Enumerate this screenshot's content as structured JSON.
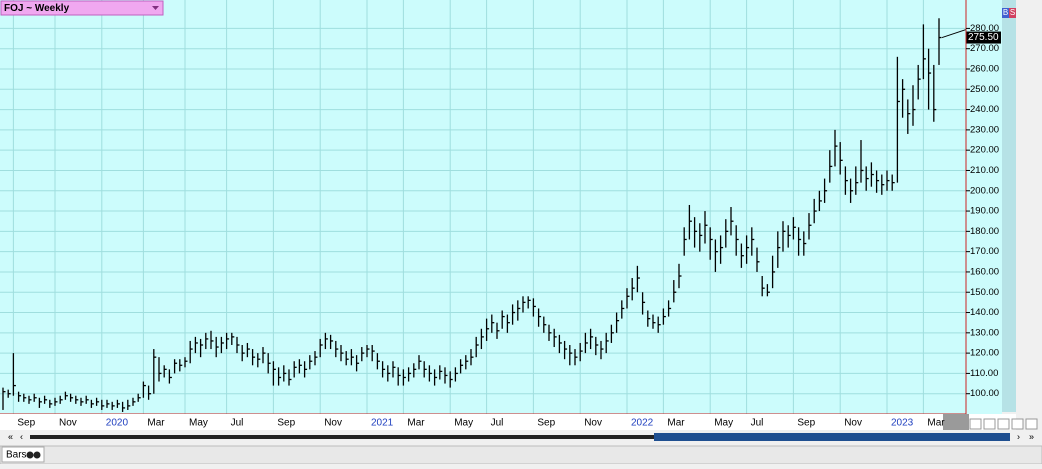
{
  "chart_data": {
    "type": "ohlc",
    "title": "FOJ ~ Weekly",
    "color": "#000000",
    "grid": true,
    "last_price_label": "275.50",
    "ylim": [
      90,
      294
    ],
    "yticks": [
      {
        "value": 100,
        "label": "100.00"
      },
      {
        "value": 110,
        "label": "110.00"
      },
      {
        "value": 120,
        "label": "120.00"
      },
      {
        "value": 130,
        "label": "130.00"
      },
      {
        "value": 140,
        "label": "140.00"
      },
      {
        "value": 150,
        "label": "150.00"
      },
      {
        "value": 160,
        "label": "160.00"
      },
      {
        "value": 170,
        "label": "170.00"
      },
      {
        "value": 180,
        "label": "180.00"
      },
      {
        "value": 190,
        "label": "190.00"
      },
      {
        "value": 200,
        "label": "200.00"
      },
      {
        "value": 210,
        "label": "210.00"
      },
      {
        "value": 220,
        "label": "220.00"
      },
      {
        "value": 230,
        "label": "230.00"
      },
      {
        "value": 240,
        "label": "240.00"
      },
      {
        "value": 250,
        "label": "250.00"
      },
      {
        "value": 260,
        "label": "260.00"
      },
      {
        "value": 270,
        "label": "270.00"
      },
      {
        "value": 280,
        "label": "280.00"
      }
    ],
    "categories": [
      null,
      null,
      "Sep",
      null,
      null,
      null,
      null,
      null,
      null,
      null,
      "Nov",
      null,
      null,
      null,
      null,
      null,
      null,
      null,
      null,
      "2020",
      null,
      null,
      null,
      null,
      null,
      null,
      null,
      "Mar",
      null,
      null,
      null,
      null,
      null,
      null,
      null,
      "May",
      null,
      null,
      null,
      null,
      null,
      null,
      null,
      "Jul",
      null,
      null,
      null,
      null,
      null,
      null,
      null,
      null,
      "Sep",
      null,
      null,
      null,
      null,
      null,
      null,
      null,
      null,
      "Nov",
      null,
      null,
      null,
      null,
      null,
      null,
      null,
      null,
      "2021",
      null,
      null,
      null,
      null,
      null,
      null,
      "Mar",
      null,
      null,
      null,
      null,
      null,
      null,
      null,
      null,
      "May",
      null,
      null,
      null,
      null,
      null,
      null,
      "Jul",
      null,
      null,
      null,
      null,
      null,
      null,
      null,
      null,
      "Sep",
      null,
      null,
      null,
      null,
      null,
      null,
      null,
      null,
      "Nov",
      null,
      null,
      null,
      null,
      null,
      null,
      null,
      null,
      "2022",
      null,
      null,
      null,
      null,
      null,
      null,
      "Mar",
      null,
      null,
      null,
      null,
      null,
      null,
      null,
      null,
      "May",
      null,
      null,
      null,
      null,
      null,
      null,
      "Jul",
      null,
      null,
      null,
      null,
      null,
      null,
      null,
      null,
      "Sep",
      null,
      null,
      null,
      null,
      null,
      null,
      null,
      null,
      "Nov",
      null,
      null,
      null,
      null,
      null,
      null,
      null,
      null,
      "2023",
      null,
      null,
      null,
      null,
      null,
      null,
      "Mar",
      null,
      null,
      null
    ],
    "high": [
      103,
      102,
      120,
      101,
      100,
      99,
      100,
      98,
      99,
      97,
      98,
      99,
      101,
      100,
      99,
      98,
      99,
      97,
      98,
      97,
      97,
      96,
      97,
      96,
      97,
      98,
      100,
      106,
      104,
      122,
      118,
      114,
      112,
      117,
      117,
      118,
      126,
      128,
      127,
      130,
      131,
      128,
      128,
      130,
      130,
      128,
      124,
      125,
      122,
      120,
      123,
      120,
      116,
      113,
      114,
      112,
      116,
      117,
      116,
      119,
      121,
      127,
      130,
      129,
      126,
      124,
      121,
      122,
      119,
      123,
      124,
      124,
      120,
      116,
      114,
      116,
      113,
      112,
      113,
      115,
      119,
      116,
      114,
      112,
      114,
      113,
      111,
      113,
      117,
      119,
      122,
      128,
      132,
      137,
      139,
      135,
      141,
      139,
      144,
      146,
      148,
      148,
      147,
      142,
      138,
      134,
      132,
      129,
      126,
      124,
      122,
      125,
      130,
      132,
      128,
      126,
      130,
      134,
      140,
      146,
      152,
      157,
      163,
      150,
      141,
      139,
      138,
      142,
      146,
      156,
      164,
      182,
      193,
      187,
      184,
      190,
      182,
      176,
      178,
      186,
      192,
      183,
      174,
      178,
      182,
      172,
      158,
      154,
      168,
      180,
      185,
      183,
      187,
      182,
      180,
      189,
      196,
      200,
      206,
      220,
      230,
      224,
      212,
      206,
      212,
      225,
      212,
      214,
      210,
      208,
      210,
      208,
      266,
      255,
      245,
      252,
      262,
      282,
      270,
      262,
      285
    ],
    "low": [
      92,
      98,
      99,
      96,
      96,
      95,
      96,
      93,
      95,
      93,
      94,
      95,
      97,
      96,
      95,
      94,
      95,
      93,
      94,
      92,
      93,
      92,
      93,
      91,
      92,
      94,
      96,
      98,
      97,
      100,
      106,
      108,
      105,
      110,
      111,
      113,
      115,
      120,
      118,
      122,
      122,
      118,
      120,
      122,
      124,
      120,
      116,
      118,
      114,
      113,
      115,
      110,
      104,
      104,
      106,
      104,
      108,
      110,
      108,
      112,
      114,
      118,
      122,
      122,
      118,
      116,
      114,
      114,
      111,
      116,
      118,
      116,
      112,
      108,
      106,
      108,
      104,
      104,
      106,
      108,
      112,
      108,
      106,
      104,
      107,
      105,
      103,
      106,
      110,
      112,
      114,
      118,
      122,
      126,
      130,
      127,
      132,
      130,
      134,
      136,
      140,
      142,
      138,
      133,
      130,
      126,
      123,
      120,
      117,
      114,
      114,
      116,
      120,
      122,
      119,
      117,
      120,
      125,
      130,
      137,
      142,
      146,
      150,
      139,
      133,
      132,
      130,
      134,
      138,
      145,
      152,
      168,
      176,
      172,
      170,
      174,
      166,
      160,
      164,
      172,
      178,
      168,
      162,
      164,
      168,
      160,
      148,
      148,
      152,
      162,
      170,
      172,
      176,
      168,
      168,
      176,
      184,
      190,
      194,
      204,
      212,
      208,
      198,
      194,
      198,
      204,
      200,
      202,
      199,
      198,
      200,
      200,
      204,
      236,
      228,
      232,
      245,
      255,
      240,
      234,
      262
    ],
    "close": [
      101,
      100,
      104,
      99,
      98,
      97,
      98,
      96,
      97,
      95,
      96,
      97,
      99,
      98,
      97,
      96,
      97,
      95,
      96,
      94,
      95,
      94,
      95,
      93,
      94,
      96,
      98,
      104,
      100,
      118,
      110,
      112,
      108,
      115,
      114,
      116,
      122,
      125,
      124,
      127,
      126,
      123,
      125,
      127,
      128,
      124,
      120,
      122,
      118,
      117,
      120,
      115,
      112,
      108,
      110,
      107,
      113,
      114,
      112,
      116,
      118,
      124,
      127,
      126,
      122,
      120,
      117,
      118,
      115,
      120,
      122,
      121,
      116,
      112,
      110,
      113,
      109,
      108,
      110,
      112,
      116,
      112,
      110,
      108,
      111,
      109,
      107,
      110,
      114,
      116,
      118,
      124,
      128,
      132,
      135,
      131,
      138,
      135,
      140,
      142,
      145,
      146,
      143,
      138,
      134,
      130,
      128,
      125,
      122,
      120,
      118,
      121,
      125,
      128,
      124,
      122,
      126,
      130,
      136,
      142,
      148,
      152,
      157,
      145,
      137,
      135,
      134,
      138,
      142,
      150,
      158,
      176,
      185,
      180,
      178,
      183,
      176,
      170,
      172,
      180,
      185,
      176,
      168,
      172,
      176,
      165,
      152,
      150,
      160,
      172,
      180,
      178,
      182,
      176,
      174,
      183,
      190,
      195,
      200,
      212,
      222,
      215,
      205,
      200,
      204,
      210,
      206,
      208,
      205,
      203,
      205,
      204,
      244,
      250,
      238,
      240,
      255,
      265,
      258,
      240,
      275.5
    ]
  },
  "ui": {
    "tab": "Bars",
    "icon_b": "B",
    "icon_s": "S"
  }
}
